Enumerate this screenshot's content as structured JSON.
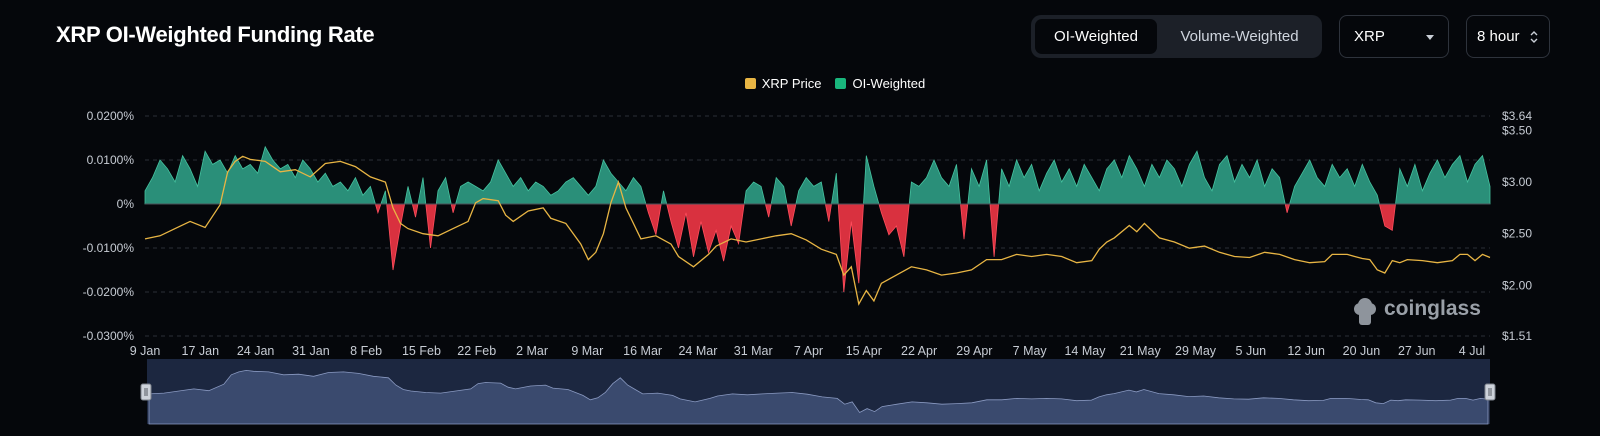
{
  "header": {
    "title": "XRP OI-Weighted Funding Rate",
    "tabs": [
      {
        "label": "OI-Weighted",
        "active": true
      },
      {
        "label": "Volume-Weighted",
        "active": false
      }
    ],
    "coin_select": {
      "value": "XRP"
    },
    "interval_select": {
      "value": "8 hour"
    }
  },
  "watermark": "coinglass",
  "colors": {
    "price": "#e8b544",
    "positive": "#2a8f79",
    "negative": "#d9313f",
    "background": "#05070b",
    "navigator": "#1c2740"
  },
  "chart_data": {
    "type": "area",
    "title": "XRP OI-Weighted Funding Rate",
    "legend": [
      "XRP Price",
      "OI-Weighted"
    ],
    "legend_position": "top-center",
    "x_ticks": [
      "9 Jan",
      "17 Jan",
      "24 Jan",
      "31 Jan",
      "8 Feb",
      "15 Feb",
      "22 Feb",
      "2 Mar",
      "9 Mar",
      "16 Mar",
      "24 Mar",
      "31 Mar",
      "7 Apr",
      "15 Apr",
      "22 Apr",
      "29 Apr",
      "7 May",
      "14 May",
      "21 May",
      "29 May",
      "5 Jun",
      "12 Jun",
      "20 Jun",
      "27 Jun",
      "4 Jul"
    ],
    "y_left_ticks": [
      "0.0200%",
      "0.0100%",
      "0%",
      "-0.0100%",
      "-0.0200%",
      "-0.0300%"
    ],
    "y_left_range": [
      -0.03,
      0.02
    ],
    "y_right_ticks": [
      "$3.64",
      "$3.50",
      "$3.00",
      "$2.50",
      "$2.00",
      "$1.51"
    ],
    "y_right_range": [
      1.51,
      3.64
    ],
    "grid": true,
    "series": [
      {
        "name": "XRP Price",
        "axis": "right",
        "points": [
          [
            0,
            2.45
          ],
          [
            2,
            2.48
          ],
          [
            4,
            2.55
          ],
          [
            6,
            2.62
          ],
          [
            8,
            2.56
          ],
          [
            10,
            2.78
          ],
          [
            11,
            3.1
          ],
          [
            12,
            3.2
          ],
          [
            13,
            3.25
          ],
          [
            14,
            3.22
          ],
          [
            16,
            3.2
          ],
          [
            18,
            3.1
          ],
          [
            20,
            3.12
          ],
          [
            22,
            3.05
          ],
          [
            24,
            3.18
          ],
          [
            26,
            3.2
          ],
          [
            28,
            3.15
          ],
          [
            30,
            3.05
          ],
          [
            32,
            3.0
          ],
          [
            33,
            2.75
          ],
          [
            34,
            2.6
          ],
          [
            35,
            2.55
          ],
          [
            37,
            2.5
          ],
          [
            39,
            2.48
          ],
          [
            41,
            2.55
          ],
          [
            43,
            2.62
          ],
          [
            44,
            2.8
          ],
          [
            45,
            2.84
          ],
          [
            47,
            2.82
          ],
          [
            48,
            2.68
          ],
          [
            49,
            2.62
          ],
          [
            51,
            2.72
          ],
          [
            53,
            2.75
          ],
          [
            54,
            2.65
          ],
          [
            56,
            2.6
          ],
          [
            58,
            2.4
          ],
          [
            59,
            2.25
          ],
          [
            60,
            2.32
          ],
          [
            61,
            2.5
          ],
          [
            62,
            2.8
          ],
          [
            63,
            3.0
          ],
          [
            64,
            2.75
          ],
          [
            65,
            2.6
          ],
          [
            66,
            2.45
          ],
          [
            68,
            2.48
          ],
          [
            70,
            2.4
          ],
          [
            71,
            2.28
          ],
          [
            73,
            2.18
          ],
          [
            75,
            2.3
          ],
          [
            76,
            2.38
          ],
          [
            78,
            2.45
          ],
          [
            80,
            2.42
          ],
          [
            82,
            2.45
          ],
          [
            84,
            2.48
          ],
          [
            86,
            2.5
          ],
          [
            88,
            2.44
          ],
          [
            90,
            2.35
          ],
          [
            92,
            2.3
          ],
          [
            93,
            2.1
          ],
          [
            94,
            2.18
          ],
          [
            95,
            1.82
          ],
          [
            96,
            1.95
          ],
          [
            97,
            1.85
          ],
          [
            98,
            2.02
          ],
          [
            100,
            2.1
          ],
          [
            102,
            2.18
          ],
          [
            104,
            2.15
          ],
          [
            106,
            2.1
          ],
          [
            108,
            2.12
          ],
          [
            110,
            2.15
          ],
          [
            112,
            2.25
          ],
          [
            114,
            2.25
          ],
          [
            116,
            2.3
          ],
          [
            118,
            2.28
          ],
          [
            120,
            2.3
          ],
          [
            122,
            2.28
          ],
          [
            124,
            2.22
          ],
          [
            126,
            2.24
          ],
          [
            127,
            2.35
          ],
          [
            128,
            2.42
          ],
          [
            129,
            2.46
          ],
          [
            131,
            2.58
          ],
          [
            132,
            2.52
          ],
          [
            133,
            2.6
          ],
          [
            135,
            2.46
          ],
          [
            137,
            2.42
          ],
          [
            139,
            2.36
          ],
          [
            141,
            2.38
          ],
          [
            143,
            2.32
          ],
          [
            145,
            2.28
          ],
          [
            147,
            2.27
          ],
          [
            149,
            2.32
          ],
          [
            151,
            2.3
          ],
          [
            153,
            2.25
          ],
          [
            155,
            2.22
          ],
          [
            157,
            2.23
          ],
          [
            158,
            2.3
          ],
          [
            160,
            2.3
          ],
          [
            161,
            2.28
          ],
          [
            162,
            2.26
          ],
          [
            163,
            2.25
          ],
          [
            164,
            2.15
          ],
          [
            165,
            2.12
          ],
          [
            166,
            2.24
          ],
          [
            167,
            2.22
          ],
          [
            168,
            2.25
          ],
          [
            170,
            2.24
          ],
          [
            172,
            2.22
          ],
          [
            174,
            2.24
          ],
          [
            175,
            2.3
          ],
          [
            176,
            2.3
          ],
          [
            177,
            2.24
          ],
          [
            178,
            2.3
          ],
          [
            179,
            2.27
          ]
        ]
      },
      {
        "name": "OI-Weighted",
        "axis": "left",
        "points": [
          [
            0,
            0.003
          ],
          [
            1,
            0.006
          ],
          [
            2,
            0.01
          ],
          [
            3,
            0.008
          ],
          [
            4,
            0.005
          ],
          [
            5,
            0.011
          ],
          [
            6,
            0.008
          ],
          [
            7,
            0.004
          ],
          [
            8,
            0.012
          ],
          [
            9,
            0.009
          ],
          [
            10,
            0.01
          ],
          [
            11,
            0.007
          ],
          [
            12,
            0.011
          ],
          [
            13,
            0.008
          ],
          [
            14,
            0.009
          ],
          [
            15,
            0.007
          ],
          [
            16,
            0.013
          ],
          [
            17,
            0.01
          ],
          [
            18,
            0.008
          ],
          [
            19,
            0.009
          ],
          [
            20,
            0.006
          ],
          [
            21,
            0.01
          ],
          [
            22,
            0.008
          ],
          [
            23,
            0.005
          ],
          [
            24,
            0.007
          ],
          [
            25,
            0.004
          ],
          [
            26,
            0.005
          ],
          [
            27,
            0.003
          ],
          [
            28,
            0.006
          ],
          [
            29,
            0.002
          ],
          [
            30,
            0.004
          ],
          [
            31,
            -0.002
          ],
          [
            32,
            0.003
          ],
          [
            33,
            -0.015
          ],
          [
            34,
            -0.005
          ],
          [
            35,
            0.004
          ],
          [
            36,
            -0.003
          ],
          [
            37,
            0.006
          ],
          [
            38,
            -0.01
          ],
          [
            39,
            0.003
          ],
          [
            40,
            0.006
          ],
          [
            41,
            -0.002
          ],
          [
            42,
            0.004
          ],
          [
            43,
            0.005
          ],
          [
            44,
            0.004
          ],
          [
            45,
            0.003
          ],
          [
            46,
            0.005
          ],
          [
            47,
            0.01
          ],
          [
            48,
            0.007
          ],
          [
            49,
            0.004
          ],
          [
            50,
            0.006
          ],
          [
            51,
            0.003
          ],
          [
            52,
            0.005
          ],
          [
            53,
            0.004
          ],
          [
            54,
            0.002
          ],
          [
            55,
            0.003
          ],
          [
            56,
            0.005
          ],
          [
            57,
            0.006
          ],
          [
            58,
            0.004
          ],
          [
            59,
            0.002
          ],
          [
            60,
            0.004
          ],
          [
            61,
            0.01
          ],
          [
            62,
            0.007
          ],
          [
            63,
            0.005
          ],
          [
            64,
            0.003
          ],
          [
            65,
            0.006
          ],
          [
            66,
            0.004
          ],
          [
            67,
            -0.002
          ],
          [
            68,
            -0.007
          ],
          [
            69,
            0.003
          ],
          [
            70,
            -0.004
          ],
          [
            71,
            -0.01
          ],
          [
            72,
            -0.002
          ],
          [
            73,
            -0.012
          ],
          [
            74,
            -0.004
          ],
          [
            75,
            -0.011
          ],
          [
            76,
            -0.006
          ],
          [
            77,
            -0.013
          ],
          [
            78,
            -0.005
          ],
          [
            79,
            -0.009
          ],
          [
            80,
            0.003
          ],
          [
            81,
            0.005
          ],
          [
            82,
            0.004
          ],
          [
            83,
            -0.003
          ],
          [
            84,
            0.006
          ],
          [
            85,
            0.004
          ],
          [
            86,
            -0.005
          ],
          [
            87,
            0.003
          ],
          [
            88,
            0.006
          ],
          [
            89,
            0.004
          ],
          [
            90,
            0.005
          ],
          [
            91,
            -0.004
          ],
          [
            92,
            0.007
          ],
          [
            93,
            -0.02
          ],
          [
            94,
            -0.004
          ],
          [
            95,
            -0.018
          ],
          [
            96,
            0.011
          ],
          [
            97,
            0.004
          ],
          [
            98,
            -0.002
          ],
          [
            99,
            -0.007
          ],
          [
            100,
            -0.005
          ],
          [
            101,
            -0.012
          ],
          [
            102,
            0.005
          ],
          [
            103,
            0.004
          ],
          [
            104,
            0.006
          ],
          [
            105,
            0.01
          ],
          [
            106,
            0.006
          ],
          [
            107,
            0.004
          ],
          [
            108,
            0.009
          ],
          [
            109,
            -0.008
          ],
          [
            110,
            0.008
          ],
          [
            111,
            0.004
          ],
          [
            112,
            0.01
          ],
          [
            113,
            -0.012
          ],
          [
            114,
            0.008
          ],
          [
            115,
            0.004
          ],
          [
            116,
            0.01
          ],
          [
            117,
            0.006
          ],
          [
            118,
            0.009
          ],
          [
            119,
            0.003
          ],
          [
            120,
            0.007
          ],
          [
            121,
            0.01
          ],
          [
            122,
            0.005
          ],
          [
            123,
            0.008
          ],
          [
            124,
            0.004
          ],
          [
            125,
            0.009
          ],
          [
            126,
            0.006
          ],
          [
            127,
            0.003
          ],
          [
            128,
            0.008
          ],
          [
            129,
            0.01
          ],
          [
            130,
            0.006
          ],
          [
            131,
            0.011
          ],
          [
            132,
            0.008
          ],
          [
            133,
            0.004
          ],
          [
            134,
            0.009
          ],
          [
            135,
            0.006
          ],
          [
            136,
            0.01
          ],
          [
            137,
            0.008
          ],
          [
            138,
            0.004
          ],
          [
            139,
            0.009
          ],
          [
            140,
            0.012
          ],
          [
            141,
            0.006
          ],
          [
            142,
            0.003
          ],
          [
            143,
            0.009
          ],
          [
            144,
            0.011
          ],
          [
            145,
            0.005
          ],
          [
            146,
            0.009
          ],
          [
            147,
            0.006
          ],
          [
            148,
            0.01
          ],
          [
            149,
            0.004
          ],
          [
            150,
            0.008
          ],
          [
            151,
            0.006
          ],
          [
            152,
            -0.002
          ],
          [
            153,
            0.004
          ],
          [
            154,
            0.007
          ],
          [
            155,
            0.01
          ],
          [
            156,
            0.006
          ],
          [
            157,
            0.004
          ],
          [
            158,
            0.009
          ],
          [
            159,
            0.006
          ],
          [
            160,
            0.008
          ],
          [
            161,
            0.004
          ],
          [
            162,
            0.009
          ],
          [
            163,
            0.005
          ],
          [
            164,
            0.002
          ],
          [
            165,
            -0.005
          ],
          [
            166,
            -0.006
          ],
          [
            167,
            0.008
          ],
          [
            168,
            0.004
          ],
          [
            169,
            0.009
          ],
          [
            170,
            0.003
          ],
          [
            171,
            0.007
          ],
          [
            172,
            0.01
          ],
          [
            173,
            0.006
          ],
          [
            174,
            0.009
          ],
          [
            175,
            0.011
          ],
          [
            176,
            0.005
          ],
          [
            177,
            0.009
          ],
          [
            178,
            0.011
          ],
          [
            179,
            0.004
          ]
        ]
      }
    ]
  }
}
